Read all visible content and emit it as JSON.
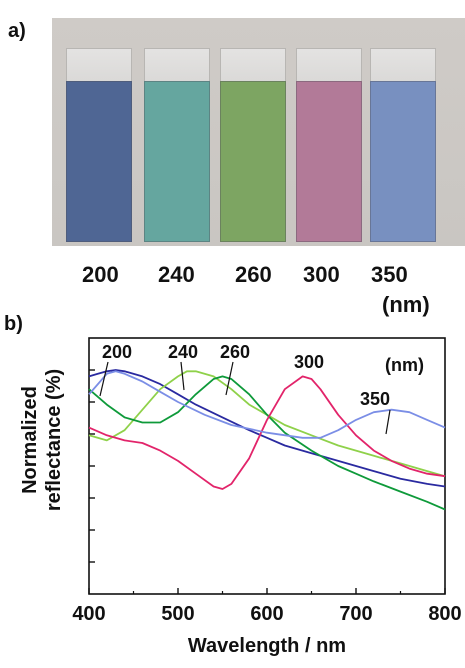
{
  "panel_a": {
    "label": "a)",
    "samples": [
      {
        "name": "200",
        "color": "#4d6699"
      },
      {
        "name": "240",
        "color": "#5fa8a0"
      },
      {
        "name": "260",
        "color": "#7aa65c"
      },
      {
        "name": "300",
        "color": "#b7789a"
      },
      {
        "name": "350",
        "color": "#7590c6"
      }
    ],
    "unit": "(nm)"
  },
  "panel_b": {
    "label": "b)",
    "unit_label": "(nm)"
  },
  "chart_data": {
    "type": "line",
    "xlabel": "Wavelength / nm",
    "ylabel_line1": "Normalized",
    "ylabel_line2": "reflectance (%)",
    "xlim": [
      400,
      800
    ],
    "ylim": [
      0,
      1
    ],
    "xticks": [
      "400",
      "500",
      "600",
      "700",
      "800"
    ],
    "y_tick_count": 8,
    "series": [
      {
        "name": "200",
        "color": "#2a2aa0",
        "x": [
          400,
          410,
          420,
          430,
          440,
          460,
          480,
          500,
          520,
          550,
          580,
          600,
          620,
          650,
          680,
          700,
          720,
          750,
          780,
          800
        ],
        "y": [
          0.85,
          0.86,
          0.87,
          0.875,
          0.87,
          0.85,
          0.82,
          0.78,
          0.74,
          0.69,
          0.64,
          0.61,
          0.58,
          0.55,
          0.52,
          0.5,
          0.48,
          0.45,
          0.43,
          0.42
        ]
      },
      {
        "name": "240",
        "color": "#8fd14a",
        "x": [
          400,
          420,
          440,
          460,
          480,
          500,
          510,
          520,
          540,
          560,
          580,
          600,
          620,
          650,
          680,
          700,
          720,
          750,
          780,
          800
        ],
        "y": [
          0.62,
          0.6,
          0.64,
          0.72,
          0.8,
          0.85,
          0.87,
          0.87,
          0.85,
          0.8,
          0.74,
          0.7,
          0.66,
          0.62,
          0.58,
          0.56,
          0.54,
          0.51,
          0.48,
          0.46
        ]
      },
      {
        "name": "260",
        "color": "#0e9a3a",
        "x": [
          400,
          420,
          440,
          460,
          480,
          500,
          520,
          540,
          550,
          560,
          580,
          600,
          620,
          650,
          680,
          700,
          720,
          750,
          780,
          800
        ],
        "y": [
          0.8,
          0.74,
          0.69,
          0.67,
          0.67,
          0.71,
          0.78,
          0.84,
          0.85,
          0.84,
          0.78,
          0.7,
          0.63,
          0.56,
          0.5,
          0.47,
          0.44,
          0.4,
          0.36,
          0.33
        ]
      },
      {
        "name": "300",
        "color": "#e2246a",
        "x": [
          400,
          420,
          440,
          460,
          480,
          500,
          520,
          540,
          550,
          560,
          580,
          600,
          620,
          640,
          650,
          660,
          680,
          700,
          720,
          740,
          760,
          780,
          800
        ],
        "y": [
          0.65,
          0.62,
          0.6,
          0.59,
          0.56,
          0.52,
          0.47,
          0.42,
          0.41,
          0.43,
          0.53,
          0.68,
          0.8,
          0.85,
          0.84,
          0.8,
          0.7,
          0.62,
          0.56,
          0.52,
          0.49,
          0.47,
          0.46
        ]
      },
      {
        "name": "350",
        "color": "#7b8ee6",
        "x": [
          400,
          410,
          420,
          430,
          440,
          460,
          480,
          500,
          530,
          560,
          600,
          640,
          660,
          680,
          700,
          720,
          740,
          760,
          780,
          800
        ],
        "y": [
          0.78,
          0.82,
          0.86,
          0.87,
          0.86,
          0.83,
          0.79,
          0.75,
          0.7,
          0.66,
          0.63,
          0.61,
          0.61,
          0.64,
          0.68,
          0.71,
          0.72,
          0.71,
          0.68,
          0.65
        ]
      }
    ]
  }
}
